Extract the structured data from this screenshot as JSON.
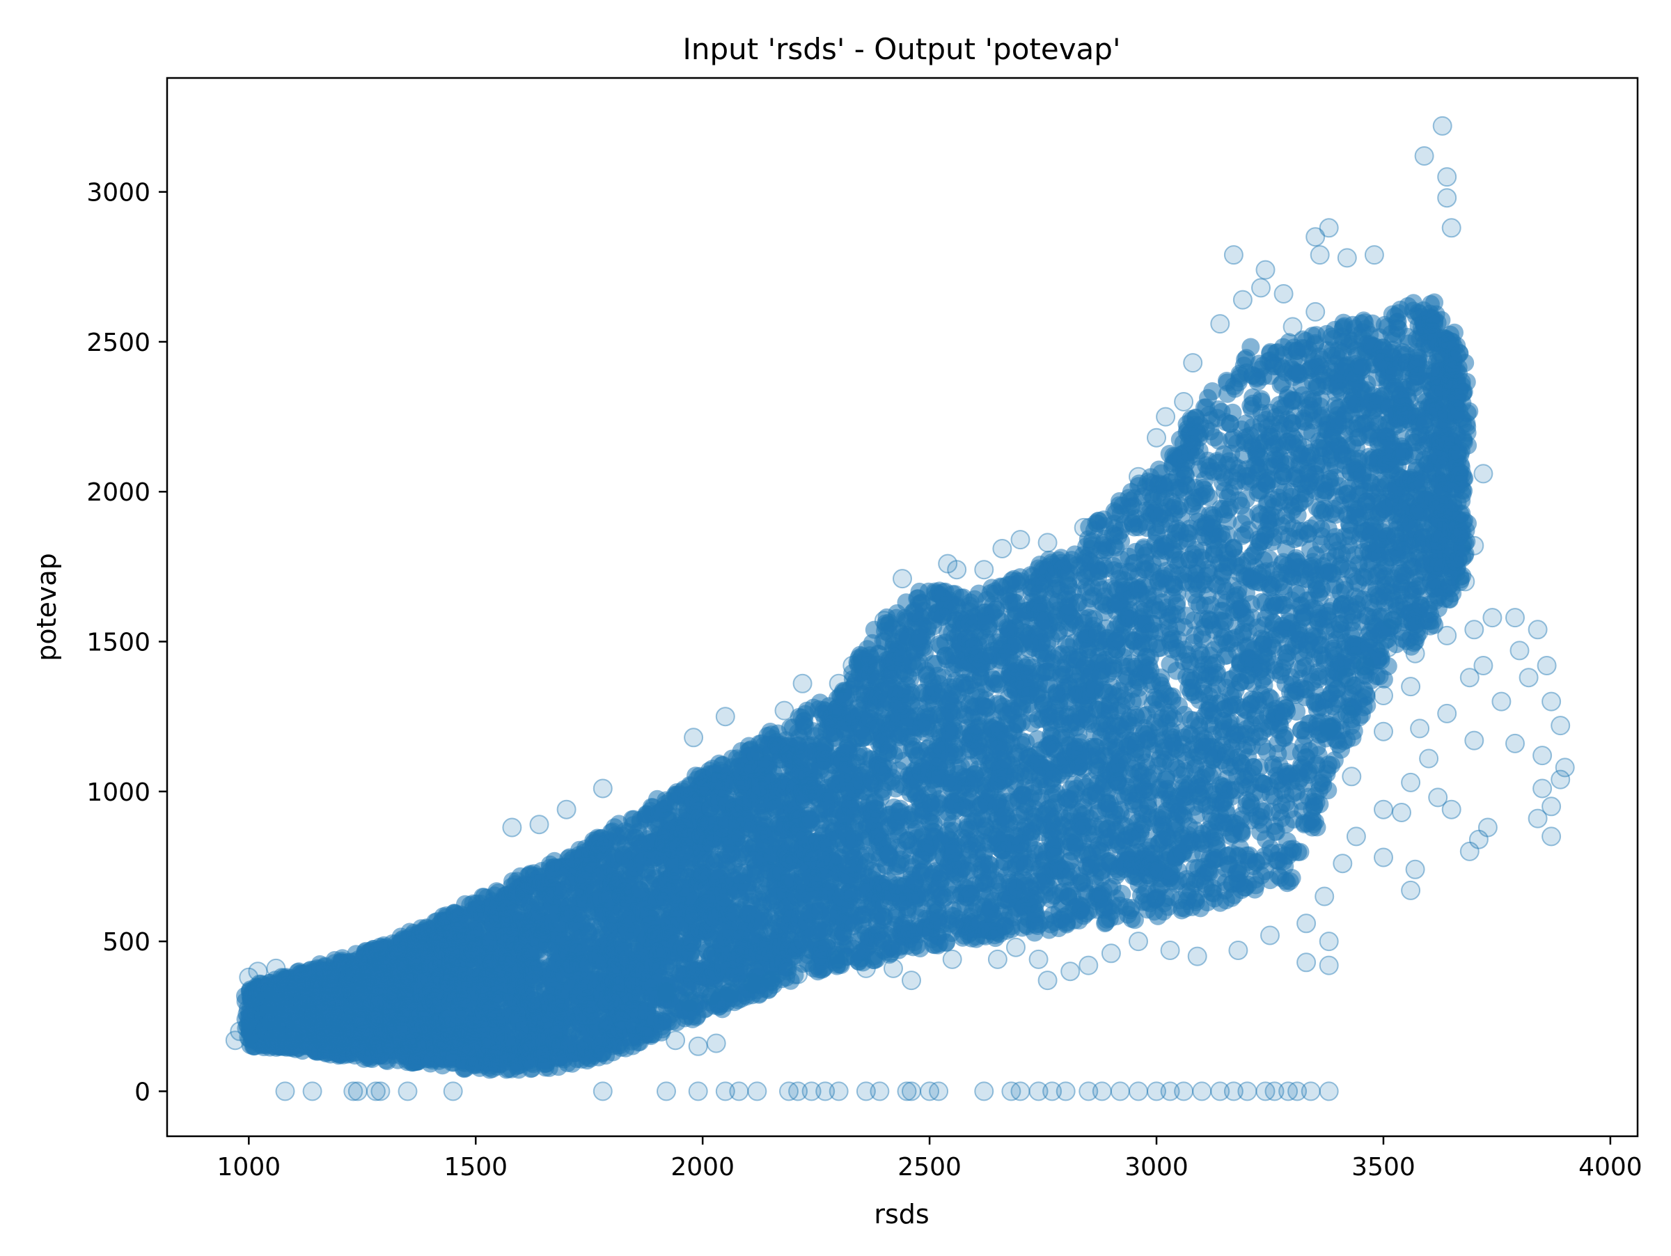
{
  "chart_data": {
    "type": "scatter",
    "title": "Input 'rsds' - Output 'potevap'",
    "xlabel": "rsds",
    "ylabel": "potevap",
    "xlim": [
      820,
      4060
    ],
    "ylim": [
      -150,
      3380
    ],
    "xticks": [
      1000,
      1500,
      2000,
      2500,
      3000,
      3500,
      4000
    ],
    "yticks": [
      0,
      500,
      1000,
      1500,
      2000,
      2500,
      3000
    ],
    "grid": false,
    "legend": "none",
    "marker_color": "#1f77b4",
    "marker_alpha": 0.2,
    "density_bands": [
      [
        1000,
        150,
        340
      ],
      [
        1100,
        140,
        400
      ],
      [
        1200,
        120,
        440
      ],
      [
        1300,
        100,
        490
      ],
      [
        1400,
        90,
        560
      ],
      [
        1500,
        70,
        640
      ],
      [
        1600,
        70,
        710
      ],
      [
        1700,
        80,
        780
      ],
      [
        1800,
        120,
        880
      ],
      [
        1900,
        180,
        970
      ],
      [
        2000,
        260,
        1060
      ],
      [
        2100,
        300,
        1150
      ],
      [
        2200,
        380,
        1250
      ],
      [
        2300,
        420,
        1330
      ],
      [
        2400,
        440,
        1600
      ],
      [
        2500,
        480,
        1680
      ],
      [
        2600,
        500,
        1660
      ],
      [
        2700,
        520,
        1720
      ],
      [
        2800,
        540,
        1800
      ],
      [
        2900,
        560,
        1950
      ],
      [
        3000,
        580,
        2100
      ],
      [
        3100,
        600,
        2300
      ],
      [
        3200,
        640,
        2480
      ],
      [
        3300,
        700,
        2500
      ],
      [
        3400,
        1100,
        2560
      ],
      [
        3500,
        1400,
        2600
      ],
      [
        3600,
        1550,
        2650
      ],
      [
        3680,
        1750,
        2450
      ]
    ],
    "sparse_points": [
      [
        1080,
        0
      ],
      [
        1140,
        0
      ],
      [
        1230,
        0
      ],
      [
        1240,
        0
      ],
      [
        1280,
        0
      ],
      [
        1290,
        0
      ],
      [
        1350,
        0
      ],
      [
        1450,
        0
      ],
      [
        1780,
        0
      ],
      [
        1920,
        0
      ],
      [
        1990,
        0
      ],
      [
        2050,
        0
      ],
      [
        2080,
        0
      ],
      [
        2120,
        0
      ],
      [
        2190,
        0
      ],
      [
        2210,
        0
      ],
      [
        2240,
        0
      ],
      [
        2270,
        0
      ],
      [
        2300,
        0
      ],
      [
        2360,
        0
      ],
      [
        2390,
        0
      ],
      [
        2450,
        0
      ],
      [
        2460,
        0
      ],
      [
        2500,
        0
      ],
      [
        2520,
        0
      ],
      [
        2620,
        0
      ],
      [
        2680,
        0
      ],
      [
        2700,
        0
      ],
      [
        2740,
        0
      ],
      [
        2770,
        0
      ],
      [
        2800,
        0
      ],
      [
        2850,
        0
      ],
      [
        2880,
        0
      ],
      [
        2920,
        0
      ],
      [
        2960,
        0
      ],
      [
        3000,
        0
      ],
      [
        3030,
        0
      ],
      [
        3060,
        0
      ],
      [
        3100,
        0
      ],
      [
        3140,
        0
      ],
      [
        3170,
        0
      ],
      [
        3200,
        0
      ],
      [
        3240,
        0
      ],
      [
        3260,
        0
      ],
      [
        3290,
        0
      ],
      [
        3310,
        0
      ],
      [
        3340,
        0
      ],
      [
        3380,
        0
      ],
      [
        2030,
        160
      ],
      [
        1990,
        150
      ],
      [
        1940,
        170
      ],
      [
        3630,
        3220
      ],
      [
        3590,
        3120
      ],
      [
        3640,
        3050
      ],
      [
        3640,
        2980
      ],
      [
        3650,
        2880
      ],
      [
        3380,
        2880
      ],
      [
        3350,
        2850
      ],
      [
        3170,
        2790
      ],
      [
        3360,
        2790
      ],
      [
        3420,
        2780
      ],
      [
        3480,
        2790
      ],
      [
        3240,
        2740
      ],
      [
        3720,
        2060
      ],
      [
        3700,
        1820
      ],
      [
        3680,
        1700
      ],
      [
        3740,
        1580
      ],
      [
        3790,
        1580
      ],
      [
        3840,
        1540
      ],
      [
        3800,
        1470
      ],
      [
        3860,
        1420
      ],
      [
        3820,
        1380
      ],
      [
        3870,
        1300
      ],
      [
        3890,
        1220
      ],
      [
        3790,
        1160
      ],
      [
        3850,
        1120
      ],
      [
        3900,
        1080
      ],
      [
        3890,
        1040
      ],
      [
        3850,
        1010
      ],
      [
        3870,
        950
      ],
      [
        3840,
        910
      ],
      [
        3870,
        850
      ],
      [
        3690,
        800
      ],
      [
        3710,
        840
      ],
      [
        3730,
        880
      ],
      [
        3650,
        940
      ],
      [
        3620,
        980
      ],
      [
        3560,
        1030
      ],
      [
        3600,
        1110
      ],
      [
        3700,
        1170
      ],
      [
        3580,
        1210
      ],
      [
        3640,
        1260
      ],
      [
        3760,
        1300
      ],
      [
        3560,
        1350
      ],
      [
        3690,
        1380
      ],
      [
        3720,
        1420
      ],
      [
        3570,
        1460
      ],
      [
        3640,
        1520
      ],
      [
        3700,
        1540
      ],
      [
        3520,
        1570
      ],
      [
        3510,
        1480
      ],
      [
        3460,
        1420
      ],
      [
        3420,
        1380
      ],
      [
        3500,
        1320
      ],
      [
        3420,
        1260
      ],
      [
        3500,
        1200
      ],
      [
        3380,
        1210
      ],
      [
        3430,
        1050
      ],
      [
        3500,
        940
      ],
      [
        3540,
        930
      ],
      [
        3570,
        740
      ],
      [
        3560,
        670
      ],
      [
        3500,
        780
      ],
      [
        3440,
        850
      ],
      [
        3410,
        760
      ],
      [
        3370,
        650
      ],
      [
        3330,
        560
      ],
      [
        3380,
        500
      ],
      [
        3330,
        430
      ],
      [
        3380,
        420
      ],
      [
        3250,
        520
      ],
      [
        3180,
        470
      ],
      [
        3090,
        450
      ],
      [
        3030,
        470
      ],
      [
        2960,
        500
      ],
      [
        2900,
        460
      ],
      [
        2850,
        420
      ],
      [
        2810,
        400
      ],
      [
        2760,
        370
      ],
      [
        2740,
        440
      ],
      [
        2690,
        480
      ],
      [
        2650,
        440
      ],
      [
        2550,
        440
      ],
      [
        2460,
        370
      ],
      [
        2420,
        410
      ],
      [
        2360,
        410
      ],
      [
        2300,
        440
      ],
      [
        2210,
        390
      ],
      [
        2150,
        370
      ],
      [
        2110,
        360
      ],
      [
        2060,
        330
      ],
      [
        2020,
        320
      ],
      [
        1970,
        300
      ],
      [
        1920,
        330
      ],
      [
        1580,
        880
      ],
      [
        1640,
        890
      ],
      [
        1700,
        940
      ],
      [
        1780,
        1010
      ],
      [
        1980,
        1180
      ],
      [
        2050,
        1250
      ],
      [
        2180,
        1270
      ],
      [
        2220,
        1360
      ],
      [
        2300,
        1360
      ],
      [
        2330,
        1420
      ],
      [
        2400,
        1570
      ],
      [
        2440,
        1710
      ],
      [
        2540,
        1760
      ],
      [
        2560,
        1740
      ],
      [
        2620,
        1740
      ],
      [
        2660,
        1810
      ],
      [
        2700,
        1840
      ],
      [
        2760,
        1830
      ],
      [
        2840,
        1880
      ],
      [
        2960,
        2050
      ],
      [
        3000,
        2180
      ],
      [
        3020,
        2250
      ],
      [
        3060,
        2300
      ],
      [
        3080,
        2430
      ],
      [
        3140,
        2560
      ],
      [
        3190,
        2640
      ],
      [
        3230,
        2680
      ],
      [
        3280,
        2660
      ],
      [
        3300,
        2550
      ],
      [
        3350,
        2600
      ],
      [
        1000,
        380
      ],
      [
        1020,
        400
      ],
      [
        1060,
        410
      ],
      [
        980,
        200
      ],
      [
        970,
        170
      ],
      [
        1000,
        180
      ]
    ]
  }
}
